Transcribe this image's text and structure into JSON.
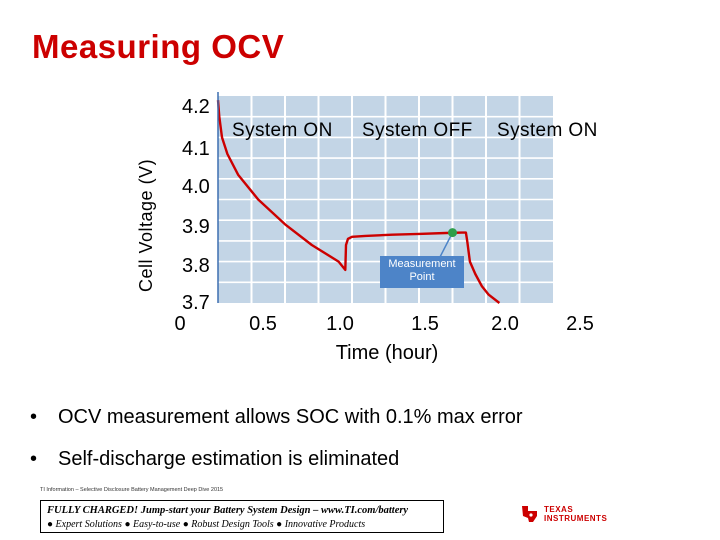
{
  "slide": {
    "title": "Measuring OCV"
  },
  "chart_data": {
    "type": "line",
    "xlabel": "Time (hour)",
    "ylabel": "Cell Voltage (V)",
    "xlim": [
      0,
      2.5
    ],
    "ylim": [
      3.7,
      4.2
    ],
    "x_ticks": [
      "0",
      "0.5",
      "1.0",
      "1.5",
      "2.0",
      "2.5"
    ],
    "y_ticks": [
      "4.2",
      "4.1",
      "4.0",
      "3.9",
      "3.8",
      "3.7"
    ],
    "grid": true,
    "phases": [
      {
        "label": "System ON",
        "x_start": 0,
        "x_end": 0.95
      },
      {
        "label": "System OFF",
        "x_start": 0.95,
        "x_end": 1.85
      },
      {
        "label": "System ON",
        "x_start": 1.85,
        "x_end": 2.5
      }
    ],
    "series": [
      {
        "color": "#cc0000",
        "x": [
          0.0,
          0.01,
          0.03,
          0.07,
          0.15,
          0.3,
          0.5,
          0.7,
          0.9,
          0.95,
          0.955,
          0.97,
          1.0,
          1.1,
          1.3,
          1.5,
          1.7,
          1.82,
          1.85,
          1.86,
          1.88,
          1.92,
          1.97,
          2.02,
          2.1
        ],
        "y": [
          4.19,
          4.15,
          4.1,
          4.06,
          4.01,
          3.95,
          3.89,
          3.84,
          3.8,
          3.78,
          3.84,
          3.855,
          3.86,
          3.862,
          3.865,
          3.867,
          3.869,
          3.87,
          3.87,
          3.85,
          3.8,
          3.77,
          3.74,
          3.72,
          3.7
        ]
      }
    ],
    "annotations": [
      {
        "label": "Measurement Point",
        "x": 1.75,
        "y": 3.87,
        "marker_color": "#2e9e4a"
      }
    ]
  },
  "bullets": [
    "OCV measurement allows SOC with 0.1% max error",
    "Self-discharge estimation is eliminated"
  ],
  "footer": {
    "disclaimer": "TI Information – Selective Disclosure  Battery Management Deep Dive 2015",
    "line1": "FULLY CHARGED! Jump-start your Battery System Design – www.TI.com/battery",
    "line2": [
      "Expert Solutions",
      "Easy-to-use",
      "Robust Design Tools",
      "Innovative Products"
    ],
    "logo_line1": "TEXAS",
    "logo_line2": "INSTRUMENTS"
  }
}
